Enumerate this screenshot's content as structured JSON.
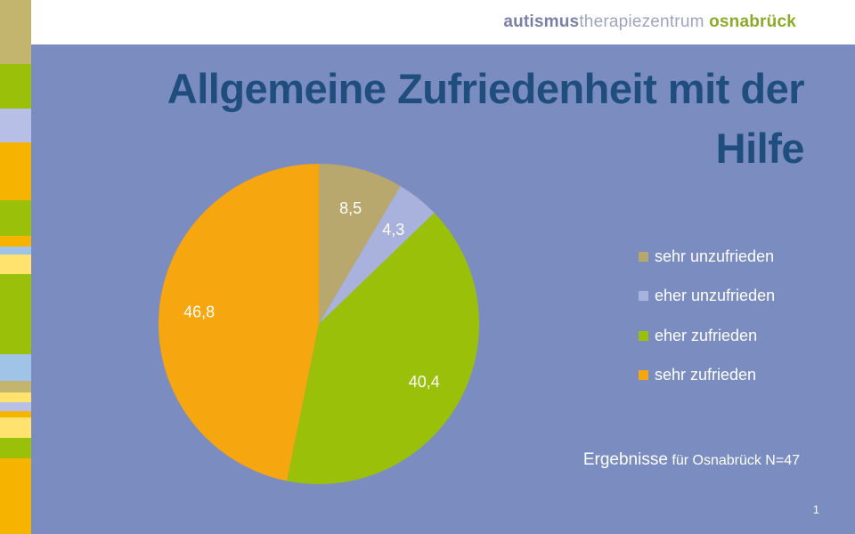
{
  "brand": {
    "part1": "autismus",
    "part2": "therapiezentrum",
    "part3": "osnabrück"
  },
  "title": {
    "line1": "Allgemeine Zufriedenheit mit der",
    "line2": "Hilfe"
  },
  "chart_data": {
    "type": "pie",
    "categories": [
      "sehr unzufrieden",
      "eher unzufrieden",
      "eher zufrieden",
      "sehr zufrieden"
    ],
    "values": [
      8.5,
      4.3,
      40.4,
      46.8
    ],
    "value_labels": [
      "8,5",
      "4,3",
      "40,4",
      "46,8"
    ],
    "colors": [
      "#b8a86e",
      "#a8b2dc",
      "#9bc00a",
      "#f6a60e"
    ],
    "legend_position": "right"
  },
  "footnote": {
    "emphasis": "Ergebnisse",
    "detail": "für Osnabrück N=47"
  },
  "page_number": "1",
  "colors": {
    "background": "#7b8cc0",
    "title": "#1f4e7e",
    "header": "#ffffff"
  },
  "stripe_colors": [
    "#c3b46e",
    "#9bc00a",
    "#b8bfe6",
    "#f6b400",
    "#9bc00a",
    "#f6b400",
    "#9fc4e8",
    "#ffe36e",
    "#9bc00a",
    "#9fc4e8",
    "#c3b46e",
    "#ffe36e",
    "#b8bfe6",
    "#f6b400",
    "#ffe36e",
    "#9bc00a",
    "#f6b400"
  ]
}
